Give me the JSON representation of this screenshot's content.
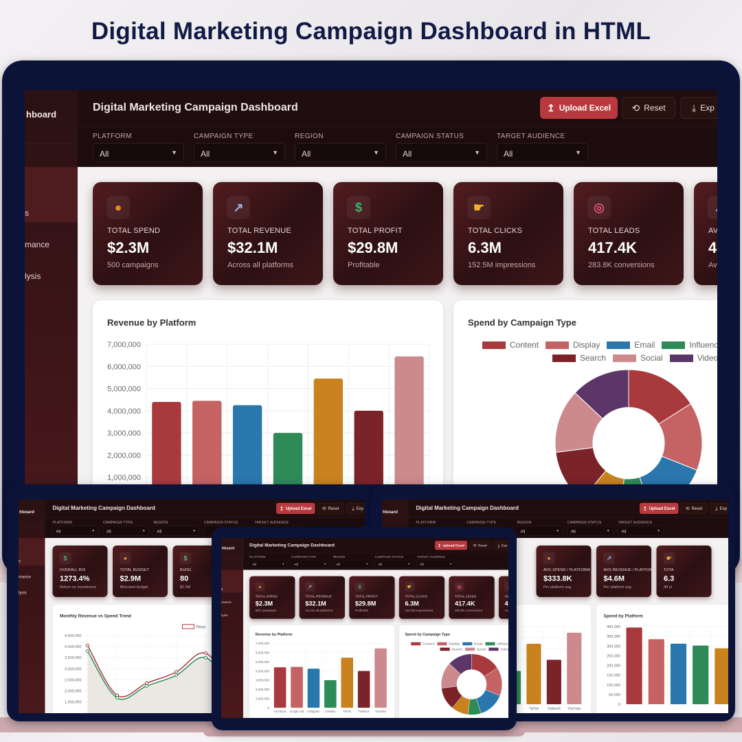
{
  "page_title": "Digital Marketing Campaign Dashboard in HTML",
  "colors": {
    "bezel": "#0b1339",
    "accent": "#b83a3f",
    "panel": "#2c1012",
    "title": "#111a45"
  },
  "dashboard": {
    "sidebar_brand": "hboard",
    "sidebar_items": [
      "s",
      "mance",
      "lysis"
    ],
    "title": "Digital Marketing Campaign Dashboard",
    "buttons": {
      "upload": "Upload Excel",
      "reset": "Reset",
      "export": "Exp"
    },
    "button_icons": {
      "upload": "upload-icon",
      "reset": "reset-icon",
      "export": "download-icon"
    },
    "filters": [
      {
        "label": "PLATFORM",
        "value": "All"
      },
      {
        "label": "CAMPAIGN TYPE",
        "value": "All"
      },
      {
        "label": "REGION",
        "value": "All"
      },
      {
        "label": "CAMPAIGN STATUS",
        "value": "All"
      },
      {
        "label": "TARGET AUDIENCE",
        "value": "All"
      }
    ]
  },
  "screens": {
    "main": {
      "kpis": [
        {
          "icon": "money-bag",
          "label": "TOTAL SPEND",
          "value": "$2.3M",
          "sub": "500 campaigns"
        },
        {
          "icon": "chart-increasing",
          "label": "TOTAL REVENUE",
          "value": "$32.1M",
          "sub": "Across all platforms"
        },
        {
          "icon": "dollar",
          "label": "TOTAL PROFIT",
          "value": "$29.8M",
          "sub": "Profitable"
        },
        {
          "icon": "pointing-hand",
          "label": "TOTAL CLICKS",
          "value": "6.3M",
          "sub": "152.5M impressions"
        },
        {
          "icon": "target",
          "label": "TOTAL LEADS",
          "value": "417.4K",
          "sub": "283.8K conversions"
        },
        {
          "icon": "chart-increasing",
          "label": "AV",
          "value": "4",
          "sub": "Av"
        }
      ]
    },
    "left": {
      "kpis": [
        {
          "icon": "dollar",
          "label": "OVERALL ROI",
          "value": "1273.4%",
          "sub": "Return on investment"
        },
        {
          "icon": "money-bag",
          "label": "TOTAL BUDGET",
          "value": "$2.9M",
          "sub": "Allocated budget"
        },
        {
          "icon": "money-wings",
          "label": "BUDG",
          "value": "80",
          "sub": "$2.3M"
        }
      ]
    },
    "right": {
      "kpis": [
        {
          "icon": "money-bag",
          "label": "AVG SPEND / PLATFORM",
          "value": "$333.8K",
          "sub": "Per platform avg"
        },
        {
          "icon": "chart-increasing",
          "label": "AVG REVENUE / PLATFORM",
          "value": "$4.6M",
          "sub": "Per platform avg"
        },
        {
          "icon": "pointing-hand",
          "label": "TOTA",
          "value": "6.3",
          "sub": "All pl"
        }
      ]
    }
  },
  "chart_data": [
    {
      "type": "bar",
      "title": "Revenue by Platform",
      "categories": [
        "Facebook",
        "Google Ads",
        "Instagram",
        "LinkedIn",
        "TikTok",
        "Twitter/X",
        "YouTube"
      ],
      "values": [
        4400000,
        4450000,
        4250000,
        3000000,
        5450000,
        4000000,
        6450000
      ],
      "colors": [
        "#a83a3e",
        "#c46264",
        "#2a77ad",
        "#2e8b57",
        "#c8821e",
        "#7a2328",
        "#cc8a8c"
      ],
      "ylim": [
        0,
        7000000
      ],
      "yticks": [
        "0",
        "1,000,000",
        "2,000,000",
        "3,000,000",
        "4,000,000",
        "5,000,000",
        "6,000,000",
        "7,000,000"
      ],
      "grid": true
    },
    {
      "type": "doughnut",
      "title": "Spend by Campaign Type",
      "labels": [
        "Content",
        "Display",
        "Email",
        "Influencer",
        "",
        "Search",
        "Social",
        "Video"
      ],
      "values": [
        16,
        15,
        14,
        7,
        9,
        12,
        14,
        13
      ],
      "colors": [
        "#a83a3e",
        "#c46264",
        "#2a77ad",
        "#2e8b57",
        "#c8821e",
        "#7a2328",
        "#cc8a8c",
        "#5c3668"
      ],
      "legend": "top"
    },
    {
      "type": "line",
      "title": "Monthly Revenue vs Spend Trend",
      "legend_text": "Reve",
      "series": [
        {
          "color": "#a83a3e",
          "values": [
            4050000,
            1800000,
            2350000,
            2850000,
            3700000,
            1900000
          ]
        },
        {
          "color": "#2e8b57",
          "values": [
            3800000,
            1680000,
            2220000,
            2700000,
            3500000,
            1800000
          ]
        },
        {
          "color": "#2a6fad",
          "values": [
            300000,
            150000,
            130000,
            170000,
            220000,
            150000
          ]
        }
      ],
      "ylim": [
        0,
        4500000
      ],
      "yticks": [
        "0",
        "500,000",
        "1,000,000",
        "1,500,000",
        "2,000,000",
        "2,500,000",
        "3,000,000",
        "3,500,000",
        "4,000,000",
        "4,500,000"
      ],
      "grid": true
    },
    {
      "type": "bar",
      "title": "Spend by Platform",
      "values": [
        395000,
        335000,
        312000,
        302000,
        288000
      ],
      "colors": [
        "#a83a3e",
        "#c46264",
        "#2a77ad",
        "#2e8b57",
        "#c8821e"
      ],
      "ylim": [
        0,
        400000
      ],
      "yticks": [
        "0",
        "50,000",
        "100,000",
        "150,000",
        "200,000",
        "250,000",
        "300,000",
        "350,000",
        "400,000"
      ],
      "grid": true
    }
  ]
}
